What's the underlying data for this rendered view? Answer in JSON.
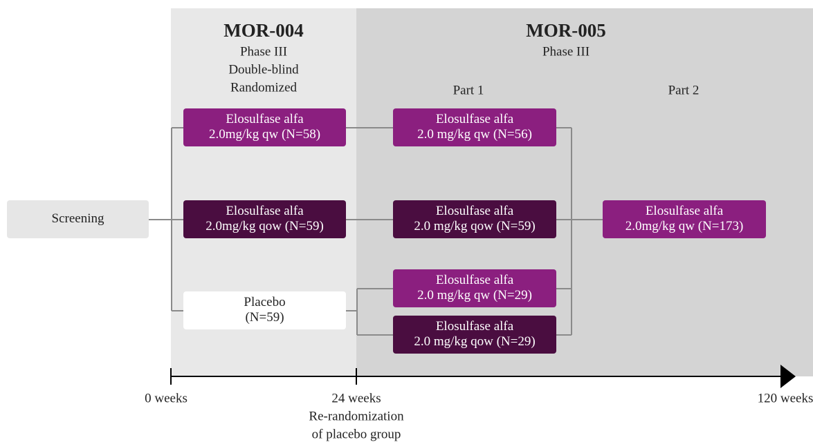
{
  "studies": [
    {
      "title": "MOR-004",
      "details": [
        "Phase III",
        "Double-blind",
        "Randomized"
      ]
    },
    {
      "title": "MOR-005",
      "details": [
        "Phase III"
      ]
    }
  ],
  "parts": [
    "Part 1",
    "Part 2"
  ],
  "nodes": [
    {
      "lines": [
        "Screening"
      ]
    },
    {
      "lines": [
        "Elosulfase alfa",
        "2.0mg/kg qw (N=58)"
      ]
    },
    {
      "lines": [
        "Elosulfase alfa",
        "2.0mg/kg qow (N=59)"
      ]
    },
    {
      "lines": [
        "Placebo",
        "(N=59)"
      ]
    },
    {
      "lines": [
        "Elosulfase alfa",
        "2.0 mg/kg qw (N=56)"
      ]
    },
    {
      "lines": [
        "Elosulfase alfa",
        "2.0 mg/kg qow (N=59)"
      ]
    },
    {
      "lines": [
        "Elosulfase alfa",
        "2.0 mg/kg qw (N=29)"
      ]
    },
    {
      "lines": [
        "Elosulfase alfa",
        "2.0 mg/kg qow (N=29)"
      ]
    },
    {
      "lines": [
        "Elosulfase alfa",
        "2.0mg/kg qw (N=173)"
      ]
    }
  ],
  "timeline": [
    {
      "lines": [
        "0 weeks"
      ]
    },
    {
      "lines": [
        "24 weeks",
        "Re-randomization",
        "of placebo group"
      ]
    },
    {
      "lines": [
        "120 weeks"
      ]
    }
  ]
}
